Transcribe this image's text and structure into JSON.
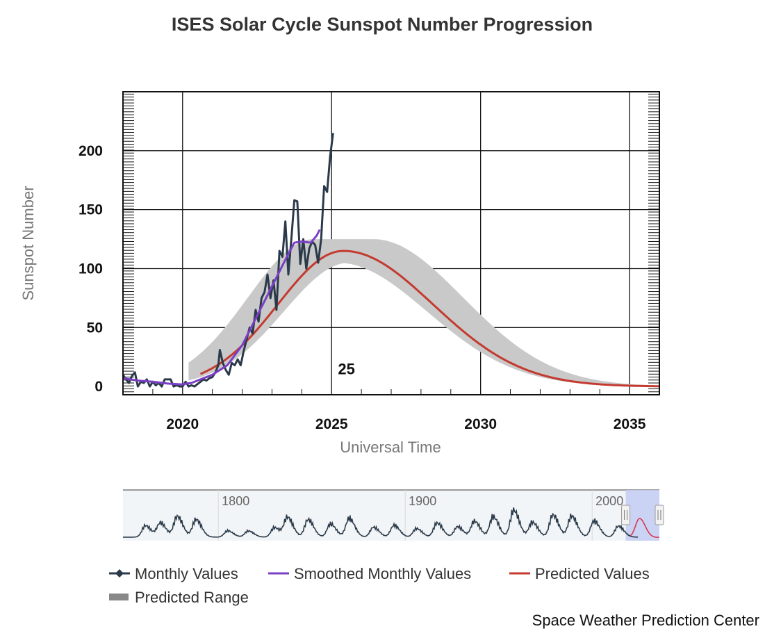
{
  "chart_data": {
    "type": "line",
    "title": "ISES Solar Cycle Sunspot Number Progression",
    "xlabel": "Universal Time",
    "ylabel": "Sunspot Number",
    "xlim": [
      2018.0,
      2036.0
    ],
    "ylim": [
      -7,
      250
    ],
    "x_ticks": [
      2020,
      2025,
      2030,
      2035
    ],
    "y_ticks": [
      0,
      50,
      100,
      150,
      200
    ],
    "cycle_label": {
      "text": "25",
      "x": 2025.5,
      "y": 15
    },
    "grid": true,
    "legend_position": "bottom",
    "series": [
      {
        "name": "Monthly Values",
        "color": "#2b3a4a",
        "points": [
          [
            2018.0,
            10
          ],
          [
            2018.1,
            6
          ],
          [
            2018.2,
            3
          ],
          [
            2018.3,
            9
          ],
          [
            2018.4,
            12
          ],
          [
            2018.5,
            0
          ],
          [
            2018.6,
            4
          ],
          [
            2018.7,
            3
          ],
          [
            2018.8,
            6
          ],
          [
            2018.9,
            0
          ],
          [
            2019.0,
            4
          ],
          [
            2019.1,
            1
          ],
          [
            2019.2,
            3
          ],
          [
            2019.3,
            0
          ],
          [
            2019.4,
            6
          ],
          [
            2019.5,
            6
          ],
          [
            2019.6,
            6
          ],
          [
            2019.7,
            0
          ],
          [
            2019.8,
            1
          ],
          [
            2019.9,
            0
          ],
          [
            2020.0,
            0
          ],
          [
            2020.1,
            4
          ],
          [
            2020.2,
            0
          ],
          [
            2020.3,
            1
          ],
          [
            2020.4,
            0
          ],
          [
            2020.5,
            2
          ],
          [
            2020.6,
            4
          ],
          [
            2020.7,
            6
          ],
          [
            2020.8,
            5
          ],
          [
            2020.9,
            7
          ],
          [
            2021.0,
            8
          ],
          [
            2021.1,
            12
          ],
          [
            2021.2,
            18
          ],
          [
            2021.25,
            31
          ],
          [
            2021.35,
            20
          ],
          [
            2021.45,
            14
          ],
          [
            2021.55,
            10
          ],
          [
            2021.65,
            20
          ],
          [
            2021.75,
            18
          ],
          [
            2021.85,
            23
          ],
          [
            2021.95,
            18
          ],
          [
            2022.05,
            30
          ],
          [
            2022.15,
            40
          ],
          [
            2022.25,
            50
          ],
          [
            2022.35,
            45
          ],
          [
            2022.45,
            65
          ],
          [
            2022.55,
            55
          ],
          [
            2022.65,
            75
          ],
          [
            2022.75,
            80
          ],
          [
            2022.85,
            95
          ],
          [
            2022.95,
            75
          ],
          [
            2023.05,
            90
          ],
          [
            2023.15,
            65
          ],
          [
            2023.25,
            115
          ],
          [
            2023.35,
            110
          ],
          [
            2023.45,
            140
          ],
          [
            2023.55,
            95
          ],
          [
            2023.65,
            125
          ],
          [
            2023.75,
            158
          ],
          [
            2023.85,
            157
          ],
          [
            2023.95,
            104
          ],
          [
            2024.05,
            125
          ],
          [
            2024.15,
            100
          ],
          [
            2024.25,
            117
          ],
          [
            2024.35,
            123
          ],
          [
            2024.45,
            120
          ],
          [
            2024.55,
            105
          ],
          [
            2024.65,
            125
          ],
          [
            2024.75,
            170
          ],
          [
            2024.85,
            165
          ],
          [
            2024.95,
            195
          ],
          [
            2025.05,
            215
          ]
        ]
      },
      {
        "name": "Smoothed Monthly Values",
        "color": "#7a3fc4",
        "points": [
          [
            2018.0,
            7
          ],
          [
            2018.5,
            5
          ],
          [
            2019.0,
            4
          ],
          [
            2019.5,
            2.5
          ],
          [
            2019.95,
            1.8
          ],
          [
            2020.3,
            3
          ],
          [
            2020.6,
            6
          ],
          [
            2021.0,
            10
          ],
          [
            2021.5,
            18
          ],
          [
            2022.0,
            35
          ],
          [
            2022.5,
            60
          ],
          [
            2022.8,
            75
          ],
          [
            2023.1,
            90
          ],
          [
            2023.5,
            110
          ],
          [
            2023.75,
            122
          ],
          [
            2024.0,
            123
          ],
          [
            2024.3,
            122
          ],
          [
            2024.5,
            128
          ],
          [
            2024.6,
            133
          ]
        ]
      },
      {
        "name": "Predicted Values",
        "color": "#c43a2f",
        "curve": "gaussian",
        "start": 2020.6,
        "end": 2036.0,
        "peak_x": 2025.4,
        "peak_y": 115,
        "rise_sigma": 2.2,
        "decay_sigma": 3.0
      },
      {
        "name": "Predicted Range",
        "color": "#c9c9c9",
        "band": true,
        "half_width": 10,
        "peak_spread": 1.0
      }
    ],
    "navigator": {
      "xlim": [
        1749,
        2036
      ],
      "labels": [
        {
          "text": "1800",
          "x": 1800
        },
        {
          "text": "1900",
          "x": 1900
        },
        {
          "text": "2000",
          "x": 2000
        }
      ],
      "selection": [
        2018.0,
        2036.0
      ],
      "line_color": "#2b3a4a",
      "selection_color": "#c4cdf4",
      "prediction_color": "#d9354f",
      "cycle_peaks": [
        1761,
        1769,
        1778,
        1788,
        1805,
        1816,
        1830,
        1837,
        1848,
        1860,
        1870,
        1883,
        1894,
        1906,
        1917,
        1928,
        1937,
        1947,
        1958,
        1968,
        1979,
        1989,
        2001,
        2014
      ],
      "cycle_amplitudes": [
        86,
        106,
        154,
        132,
        47,
        46,
        71,
        146,
        131,
        98,
        140,
        74,
        88,
        64,
        105,
        78,
        119,
        152,
        201,
        111,
        165,
        158,
        121,
        82
      ]
    }
  },
  "legend": {
    "items": [
      {
        "label": "Monthly Values",
        "marker": "diamond-line",
        "color": "#2b3a4a"
      },
      {
        "label": "Smoothed Monthly Values",
        "marker": "line",
        "color": "#7a3fc4"
      },
      {
        "label": "Predicted Values",
        "marker": "line",
        "color": "#c43a2f"
      },
      {
        "label": "Predicted Range",
        "marker": "bar",
        "color": "#888888"
      }
    ]
  },
  "credit": "Space Weather Prediction Center"
}
